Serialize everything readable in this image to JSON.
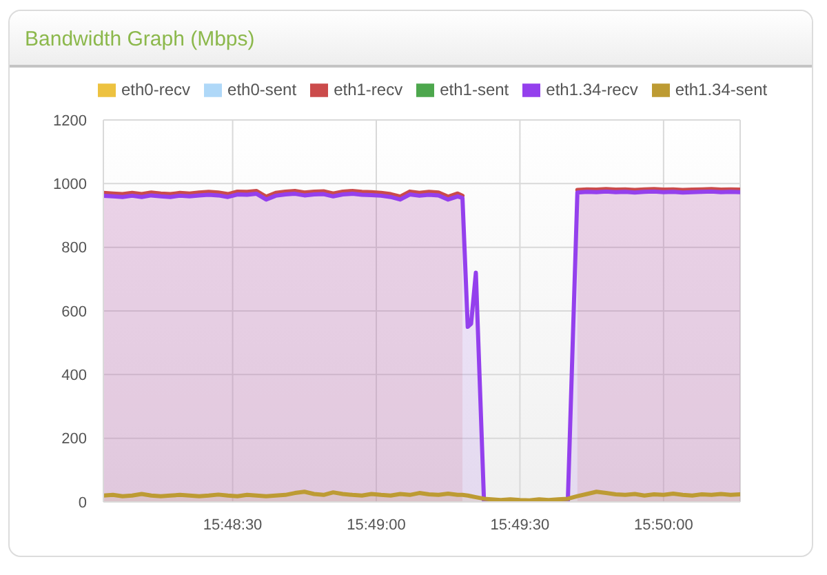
{
  "chart_data": {
    "type": "area",
    "title": "Bandwidth Graph (Mbps)",
    "x": [
      15.800833,
      15.801389,
      15.801944,
      15.8025,
      15.803056,
      15.803611,
      15.804167,
      15.804722,
      15.805278,
      15.805833,
      15.806389,
      15.806944,
      15.8075,
      15.808056,
      15.808611,
      15.809167,
      15.809722,
      15.810278,
      15.810833,
      15.811389,
      15.811944,
      15.8125,
      15.813056,
      15.813611,
      15.814167,
      15.814722,
      15.815278,
      15.815833,
      15.816389,
      15.816944,
      15.8175,
      15.818056,
      15.818611,
      15.819167,
      15.819722,
      15.820278,
      15.820833,
      15.821389,
      15.821667,
      15.821972,
      15.822167,
      15.822444,
      15.822917,
      15.823333,
      15.823889,
      15.824444,
      15.825,
      15.825556,
      15.826111,
      15.826667,
      15.827222,
      15.827778,
      15.828333,
      15.828889,
      15.829444,
      15.83,
      15.830556,
      15.831111,
      15.831667,
      15.832222,
      15.832778,
      15.833333,
      15.833889,
      15.834444,
      15.835,
      15.835556,
      15.836111,
      15.836667,
      15.837222,
      15.837778
    ],
    "series": [
      {
        "name": "eth0-recv",
        "color": "#edc240",
        "values": [
          null,
          null,
          null,
          null,
          null,
          null,
          null,
          null,
          null,
          null,
          null,
          null,
          null,
          null,
          null,
          null,
          null,
          null,
          null,
          null,
          null,
          null,
          null,
          null,
          null,
          null,
          null,
          null,
          null,
          null,
          null,
          null,
          null,
          null,
          null,
          null,
          null,
          null,
          null,
          null,
          null,
          null,
          null,
          null,
          null,
          null,
          null,
          null,
          null,
          null,
          null,
          null,
          null,
          null,
          null,
          null,
          null,
          null,
          null,
          null,
          null,
          null,
          null,
          null,
          null,
          null,
          null,
          null,
          null,
          null
        ]
      },
      {
        "name": "eth0-sent",
        "color": "#afd8f8",
        "values": [
          null,
          null,
          null,
          null,
          null,
          null,
          null,
          null,
          null,
          null,
          null,
          null,
          null,
          null,
          null,
          null,
          null,
          null,
          null,
          null,
          null,
          null,
          null,
          null,
          null,
          null,
          null,
          null,
          null,
          null,
          null,
          null,
          null,
          null,
          null,
          null,
          null,
          null,
          null,
          null,
          null,
          null,
          null,
          null,
          null,
          null,
          null,
          null,
          null,
          null,
          null,
          null,
          null,
          null,
          null,
          null,
          null,
          null,
          null,
          null,
          null,
          null,
          null,
          null,
          null,
          null,
          null,
          null,
          null,
          null
        ]
      },
      {
        "name": "eth1-recv",
        "color": "#cb4b4b",
        "values": [
          971,
          969,
          967,
          971,
          967,
          972,
          969,
          967,
          971,
          969,
          972,
          974,
          972,
          967,
          975,
          974,
          977,
          959,
          971,
          975,
          977,
          972,
          975,
          976,
          969,
          975,
          977,
          974,
          973,
          971,
          967,
          959,
          975,
          971,
          974,
          972,
          959,
          969,
          962,
          null,
          null,
          null,
          null,
          null,
          null,
          null,
          null,
          null,
          null,
          null,
          null,
          null,
          980,
          982,
          981,
          983,
          981,
          982,
          980,
          982,
          983,
          981,
          982,
          980,
          981,
          982,
          983,
          981,
          982,
          981
        ]
      },
      {
        "name": "eth1-sent",
        "color": "#4da74d",
        "values": [
          null,
          null,
          null,
          null,
          null,
          null,
          null,
          null,
          null,
          null,
          null,
          null,
          null,
          null,
          null,
          null,
          null,
          null,
          null,
          null,
          null,
          null,
          null,
          null,
          null,
          null,
          null,
          null,
          null,
          null,
          null,
          null,
          null,
          null,
          null,
          null,
          null,
          null,
          null,
          null,
          null,
          null,
          null,
          null,
          null,
          null,
          null,
          null,
          null,
          null,
          null,
          null,
          null,
          null,
          null,
          null,
          null,
          null,
          null,
          null,
          null,
          null,
          null,
          null,
          null,
          null,
          null,
          null,
          null,
          null
        ]
      },
      {
        "name": "eth1.34-recv",
        "color": "#9440ed",
        "values": [
          962,
          960,
          958,
          962,
          958,
          963,
          960,
          958,
          962,
          960,
          963,
          965,
          963,
          958,
          966,
          965,
          968,
          950,
          962,
          966,
          968,
          963,
          966,
          967,
          960,
          966,
          968,
          965,
          964,
          962,
          958,
          950,
          966,
          962,
          965,
          963,
          950,
          960,
          955,
          550,
          560,
          720,
          0,
          0,
          0,
          0,
          0,
          0,
          0,
          0,
          0,
          0,
          972,
          974,
          973,
          975,
          973,
          974,
          972,
          974,
          975,
          973,
          974,
          972,
          973,
          974,
          975,
          973,
          974,
          973
        ]
      },
      {
        "name": "eth1.34-sent",
        "color": "#bd9b33",
        "values": [
          20,
          22,
          18,
          20,
          25,
          20,
          18,
          20,
          22,
          20,
          18,
          20,
          23,
          20,
          18,
          22,
          20,
          18,
          20,
          22,
          28,
          32,
          25,
          22,
          30,
          25,
          22,
          20,
          25,
          22,
          20,
          25,
          22,
          28,
          24,
          22,
          26,
          22,
          22,
          20,
          18,
          15,
          10,
          8,
          6,
          8,
          6,
          5,
          8,
          6,
          8,
          10,
          18,
          25,
          32,
          28,
          24,
          22,
          25,
          20,
          24,
          22,
          26,
          22,
          20,
          24,
          22,
          25,
          22,
          24
        ]
      }
    ],
    "xlim": [
      15.800833,
      15.837778
    ],
    "xticks": [
      {
        "value": 15.808333,
        "label": "15:48:30"
      },
      {
        "value": 15.816667,
        "label": "15:49:00"
      },
      {
        "value": 15.825,
        "label": "15:49:30"
      },
      {
        "value": 15.833333,
        "label": "15:50:00"
      }
    ],
    "ylim": [
      0,
      1200
    ],
    "yticks": [
      0,
      200,
      400,
      600,
      800,
      1000,
      1200
    ],
    "grid": true,
    "legend": "top left"
  }
}
